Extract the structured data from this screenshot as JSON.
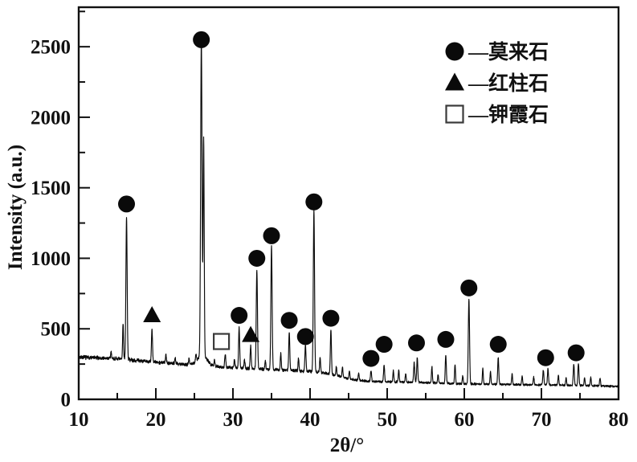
{
  "figure": {
    "background": "#ffffff",
    "trace_color": "#0a0a0a",
    "axis_color": "#111111",
    "marker_color": "#0a0a0a"
  },
  "chart_data": {
    "type": "line",
    "title": "",
    "xlabel": "2θ/°",
    "ylabel": "Intensity (a.u.)",
    "x_range": [
      10,
      80
    ],
    "y_range": [
      0,
      2780
    ],
    "x_major_ticks": [
      10,
      20,
      30,
      40,
      50,
      60,
      70,
      80
    ],
    "x_minor_step": 5,
    "y_major_ticks": [
      0,
      500,
      1000,
      1500,
      2000,
      2500
    ],
    "y_minor_step": 250,
    "grid": false,
    "legend": {
      "position": "top-right",
      "items": [
        {
          "marker": "filled-circle",
          "dash": "—",
          "name": "莫来石"
        },
        {
          "marker": "filled-triangle",
          "dash": "—",
          "name": "红柱石"
        },
        {
          "marker": "open-square",
          "dash": "—",
          "name": "钾霞石"
        }
      ]
    },
    "baseline_counts": [
      [
        10,
        300
      ],
      [
        13,
        292
      ],
      [
        16,
        284
      ],
      [
        19,
        267
      ],
      [
        22,
        256
      ],
      [
        24,
        247
      ],
      [
        25.5,
        252
      ],
      [
        26.5,
        250
      ],
      [
        27.5,
        237
      ],
      [
        29,
        227
      ],
      [
        31,
        221
      ],
      [
        33,
        217
      ],
      [
        35,
        212
      ],
      [
        37,
        206
      ],
      [
        39,
        201
      ],
      [
        40.5,
        196
      ],
      [
        42,
        186
      ],
      [
        43.5,
        168
      ],
      [
        45,
        146
      ],
      [
        46.5,
        133
      ],
      [
        48,
        127
      ],
      [
        50,
        124
      ],
      [
        53,
        122
      ],
      [
        56,
        117
      ],
      [
        59,
        111
      ],
      [
        62,
        108
      ],
      [
        65,
        106
      ],
      [
        68,
        104
      ],
      [
        71,
        102
      ],
      [
        74,
        99
      ],
      [
        77,
        96
      ],
      [
        80,
        91
      ]
    ],
    "labeled_peaks": [
      {
        "two_theta": 16.2,
        "amp": 1005,
        "sigma": 0.08,
        "phase": "莫来石"
      },
      {
        "two_theta": 19.5,
        "amp": 230,
        "sigma": 0.07,
        "phase": "红柱石"
      },
      {
        "two_theta": 25.9,
        "amp": 2230,
        "sigma": 0.09,
        "phase": "莫来石"
      },
      {
        "two_theta": 26.2,
        "amp": 1530,
        "sigma": 0.07,
        "phase": "莫来石"
      },
      {
        "two_theta": 26.05,
        "amp": 70,
        "sigma": 0.5,
        "phase": "莫来石"
      },
      {
        "two_theta": 29.0,
        "amp": 90,
        "sigma": 0.07,
        "phase": "钾霞石"
      },
      {
        "two_theta": 30.8,
        "amp": 290,
        "sigma": 0.07,
        "phase": "莫来石"
      },
      {
        "two_theta": 32.3,
        "amp": 160,
        "sigma": 0.07,
        "phase": "红柱石"
      },
      {
        "two_theta": 33.1,
        "amp": 700,
        "sigma": 0.08,
        "phase": "莫来石"
      },
      {
        "two_theta": 35.0,
        "amp": 875,
        "sigma": 0.08,
        "phase": "莫来石"
      },
      {
        "two_theta": 37.3,
        "amp": 270,
        "sigma": 0.07,
        "phase": "莫来石"
      },
      {
        "two_theta": 39.4,
        "amp": 185,
        "sigma": 0.07,
        "phase": "莫来石"
      },
      {
        "two_theta": 40.5,
        "amp": 1145,
        "sigma": 0.08,
        "phase": "莫来石"
      },
      {
        "two_theta": 42.7,
        "amp": 320,
        "sigma": 0.07,
        "phase": "莫来石"
      },
      {
        "two_theta": 47.9,
        "amp": 75,
        "sigma": 0.07,
        "phase": "莫来石"
      },
      {
        "two_theta": 49.6,
        "amp": 120,
        "sigma": 0.07,
        "phase": "莫来石"
      },
      {
        "two_theta": 53.5,
        "amp": 140,
        "sigma": 0.07,
        "phase": "莫来石"
      },
      {
        "two_theta": 53.9,
        "amp": 175,
        "sigma": 0.07,
        "phase": "莫来石"
      },
      {
        "two_theta": 57.6,
        "amp": 200,
        "sigma": 0.07,
        "phase": "莫来石"
      },
      {
        "two_theta": 60.6,
        "amp": 600,
        "sigma": 0.08,
        "phase": "莫来石"
      },
      {
        "two_theta": 64.4,
        "amp": 190,
        "sigma": 0.07,
        "phase": "莫来石"
      },
      {
        "two_theta": 70.25,
        "amp": 105,
        "sigma": 0.07,
        "phase": "莫来石"
      },
      {
        "two_theta": 70.85,
        "amp": 115,
        "sigma": 0.07,
        "phase": "莫来石"
      },
      {
        "two_theta": 74.2,
        "amp": 150,
        "sigma": 0.07,
        "phase": "莫来石"
      },
      {
        "two_theta": 74.8,
        "amp": 155,
        "sigma": 0.07,
        "phase": "莫来石"
      }
    ],
    "minor_peaks": [
      [
        14.2,
        50
      ],
      [
        15.75,
        255
      ],
      [
        21.3,
        65
      ],
      [
        22.5,
        40
      ],
      [
        24.3,
        45
      ],
      [
        25.2,
        55
      ],
      [
        27.6,
        45
      ],
      [
        30.2,
        60
      ],
      [
        31.5,
        60
      ],
      [
        34.2,
        60
      ],
      [
        36.2,
        120
      ],
      [
        38.5,
        90
      ],
      [
        41.3,
        110
      ],
      [
        43.4,
        60
      ],
      [
        44.2,
        70
      ],
      [
        45.1,
        55
      ],
      [
        46.3,
        55
      ],
      [
        50.8,
        80
      ],
      [
        51.5,
        90
      ],
      [
        52.4,
        60
      ],
      [
        55.8,
        115
      ],
      [
        56.6,
        60
      ],
      [
        58.8,
        140
      ],
      [
        59.8,
        55
      ],
      [
        62.4,
        110
      ],
      [
        63.4,
        90
      ],
      [
        66.2,
        75
      ],
      [
        67.5,
        60
      ],
      [
        69.0,
        55
      ],
      [
        72.2,
        70
      ],
      [
        73.2,
        55
      ],
      [
        75.6,
        55
      ],
      [
        76.4,
        60
      ],
      [
        77.6,
        55
      ]
    ],
    "peak_markers": [
      {
        "shape": "circle",
        "two_theta": 16.2,
        "intensity": 1385,
        "phase": "莫来石"
      },
      {
        "shape": "circle",
        "two_theta": 25.9,
        "intensity": 2550,
        "phase": "莫来石"
      },
      {
        "shape": "circle",
        "two_theta": 30.8,
        "intensity": 595,
        "phase": "莫来石"
      },
      {
        "shape": "circle",
        "two_theta": 33.1,
        "intensity": 1000,
        "phase": "莫来石"
      },
      {
        "shape": "circle",
        "two_theta": 35.0,
        "intensity": 1160,
        "phase": "莫来石"
      },
      {
        "shape": "circle",
        "two_theta": 37.3,
        "intensity": 560,
        "phase": "莫来石"
      },
      {
        "shape": "circle",
        "two_theta": 39.4,
        "intensity": 445,
        "phase": "莫来石"
      },
      {
        "shape": "circle",
        "two_theta": 40.5,
        "intensity": 1400,
        "phase": "莫来石"
      },
      {
        "shape": "circle",
        "two_theta": 42.7,
        "intensity": 575,
        "phase": "莫来石"
      },
      {
        "shape": "circle",
        "two_theta": 47.9,
        "intensity": 290,
        "phase": "莫来石"
      },
      {
        "shape": "circle",
        "two_theta": 49.6,
        "intensity": 390,
        "phase": "莫来石"
      },
      {
        "shape": "circle",
        "two_theta": 53.8,
        "intensity": 400,
        "phase": "莫来石"
      },
      {
        "shape": "circle",
        "two_theta": 57.6,
        "intensity": 425,
        "phase": "莫来石"
      },
      {
        "shape": "circle",
        "two_theta": 60.6,
        "intensity": 790,
        "phase": "莫来石"
      },
      {
        "shape": "circle",
        "two_theta": 64.4,
        "intensity": 390,
        "phase": "莫来石"
      },
      {
        "shape": "circle",
        "two_theta": 70.55,
        "intensity": 295,
        "phase": "莫来石"
      },
      {
        "shape": "circle",
        "two_theta": 74.5,
        "intensity": 330,
        "phase": "莫来石"
      },
      {
        "shape": "triangle",
        "two_theta": 19.5,
        "intensity": 595,
        "phase": "红柱石"
      },
      {
        "shape": "triangle",
        "two_theta": 32.3,
        "intensity": 455,
        "phase": "红柱石"
      },
      {
        "shape": "square",
        "two_theta": 28.5,
        "intensity": 410,
        "phase": "钾霞石"
      }
    ],
    "noise": {
      "seed": 7,
      "base_amp": 4.5,
      "amp_scale": 0.04
    }
  }
}
